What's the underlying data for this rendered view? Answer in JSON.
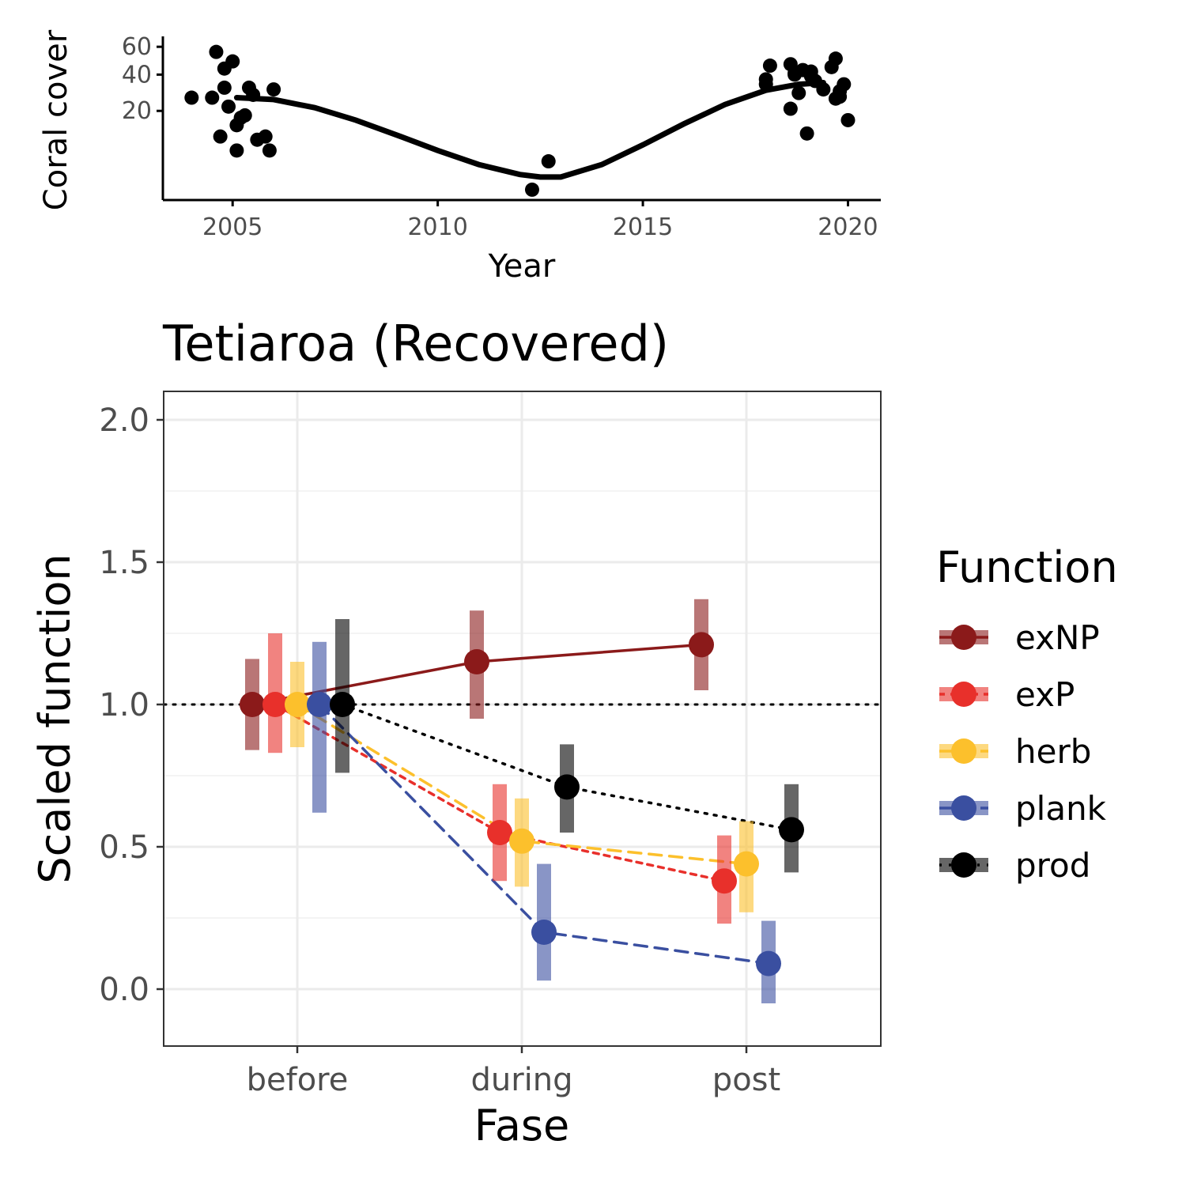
{
  "chart_data": [
    {
      "type": "scatter",
      "title": "",
      "xlabel": "Year",
      "ylabel": "Coral cover",
      "xlim": [
        2003.3,
        2020.8
      ],
      "x_ticks": [
        2005,
        2010,
        2015,
        2020
      ],
      "x_tick_labels": [
        "2005",
        "2010",
        "2015",
        "2020"
      ],
      "y_scale": "sqrt",
      "ylim": [
        0,
        62
      ],
      "y_ticks": [
        20,
        40,
        60
      ],
      "y_tick_labels": [
        "20",
        "40",
        "60"
      ],
      "grid": false,
      "points": {
        "x": [
          2004.0,
          2004.5,
          2004.6,
          2004.7,
          2004.8,
          2004.9,
          2005.0,
          2005.1,
          2005.1,
          2005.2,
          2005.3,
          2004.8,
          2005.5,
          2005.6,
          2005.8,
          2005.9,
          2006.0,
          2005.4,
          2012.3,
          2012.7,
          2018.0,
          2018.1,
          2018.0,
          2018.6,
          2018.6,
          2018.7,
          2018.9,
          2019.1,
          2019.2,
          2019.1,
          2019.4,
          2019.6,
          2019.7,
          2019.8,
          2019.8,
          2019.9,
          2019.7,
          2018.8,
          2018.7,
          2019.0,
          2020.0
        ],
        "y": [
          26.5,
          26.5,
          56,
          10,
          32,
          22,
          49,
          14,
          6,
          17,
          18,
          44,
          28,
          9,
          10,
          6,
          31,
          32,
          0.2,
          3.6,
          37,
          46,
          34,
          47,
          21,
          40,
          43,
          39,
          36,
          42,
          31,
          45,
          51,
          30,
          27,
          34,
          26,
          29,
          41,
          11,
          16
        ]
      },
      "trend": {
        "x": [
          2005.1,
          2006.0,
          2007.0,
          2008.0,
          2009.0,
          2010.0,
          2011.0,
          2012.0,
          2012.5,
          2013.0,
          2014.0,
          2015.0,
          2016.0,
          2017.0,
          2018.0,
          2018.8,
          2019.4
        ],
        "y": [
          26.5,
          25.5,
          21.5,
          16.0,
          10.5,
          6.0,
          3.0,
          1.5,
          1.2,
          1.2,
          3.0,
          7.5,
          14.5,
          23.0,
          30.5,
          34.0,
          35.0
        ]
      }
    },
    {
      "type": "line",
      "title": "Tetiaroa (Recovered)",
      "xlabel": "Fase",
      "ylabel": "Scaled function",
      "categories": [
        "before",
        "during",
        "post"
      ],
      "ylim": [
        -0.2,
        2.1
      ],
      "y_ticks": [
        0,
        0.5,
        1,
        1.5,
        2
      ],
      "y_tick_labels": [
        "0.0",
        "0.5",
        "1.0",
        "1.5",
        "2.0"
      ],
      "reference_line": 1.0,
      "grid": true,
      "legend_title": "Function",
      "legend_position": "right",
      "series": [
        {
          "name": "exNP",
          "color": "#8b1a1a",
          "dash": "solid",
          "values": [
            1.0,
            1.15,
            1.21
          ],
          "lower": [
            0.84,
            0.95,
            1.05
          ],
          "upper": [
            1.16,
            1.33,
            1.37
          ]
        },
        {
          "name": "exP",
          "color": "#e8302b",
          "dash": "short-dash",
          "values": [
            1.0,
            0.55,
            0.38
          ],
          "lower": [
            0.83,
            0.38,
            0.23
          ],
          "upper": [
            1.25,
            0.72,
            0.54
          ]
        },
        {
          "name": "herb",
          "color": "#fcc02c",
          "dash": "long-dash",
          "values": [
            1.0,
            0.52,
            0.44
          ],
          "lower": [
            0.85,
            0.36,
            0.27
          ],
          "upper": [
            1.15,
            0.67,
            0.59
          ]
        },
        {
          "name": "plank",
          "color": "#3a4fa0",
          "dash": "long-dash",
          "values": [
            1.0,
            0.2,
            0.09
          ],
          "lower": [
            0.62,
            0.03,
            -0.05
          ],
          "upper": [
            1.22,
            0.44,
            0.24
          ]
        },
        {
          "name": "prod",
          "color": "#000000",
          "dash": "dotted",
          "values": [
            1.0,
            0.71,
            0.56
          ],
          "lower": [
            0.76,
            0.55,
            0.41
          ],
          "upper": [
            1.3,
            0.86,
            0.72
          ]
        }
      ]
    }
  ]
}
